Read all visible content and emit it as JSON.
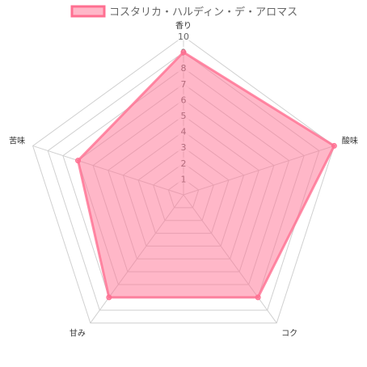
{
  "chart_data": {
    "type": "radar",
    "title": "",
    "axes": [
      "香り",
      "酸味",
      "コク",
      "甘み",
      "苦味"
    ],
    "series": [
      {
        "name": "コスタリカ・ハルディン・デ・アロマス",
        "values": [
          9,
          10,
          8,
          8,
          7
        ]
      }
    ],
    "rlim": [
      0,
      10
    ],
    "ticks": [
      "1",
      "2",
      "3",
      "4",
      "5",
      "6",
      "7",
      "8",
      "9",
      "10"
    ],
    "grid": true,
    "legend": "top",
    "colors": {
      "fill": "#ff6f91",
      "stroke": "#ff6f91",
      "grid": "#d0d0d0"
    }
  }
}
